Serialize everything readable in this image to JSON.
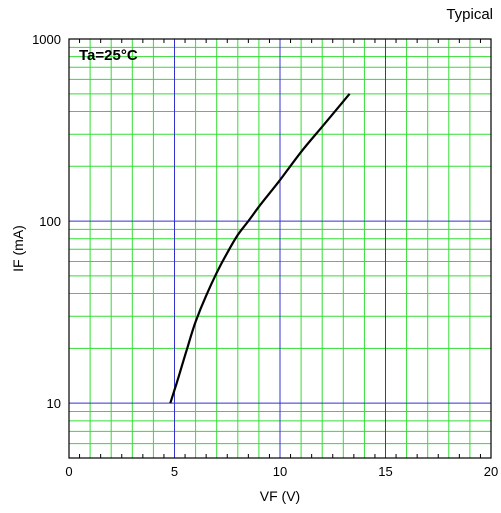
{
  "chart_data": {
    "type": "line",
    "note": "Typical",
    "condition": "Ta=25°C",
    "xlabel": "VF (V)",
    "ylabel": "IF (mA)",
    "xlim": [
      0,
      20
    ],
    "ylim": [
      5,
      1000
    ],
    "yscale": "log",
    "x_ticks": [
      0,
      5,
      10,
      15,
      20
    ],
    "x_tick_labels": [
      "0",
      "5",
      "10",
      "15",
      "20"
    ],
    "y_ticks": [
      10,
      100,
      1000
    ],
    "y_tick_labels": [
      "10",
      "100",
      "1000"
    ],
    "grid": true,
    "colors": {
      "major_grid": "#3333cc",
      "minor_grid": "#33dd33",
      "curve": "#000000"
    },
    "series": [
      {
        "x": [
          4.8,
          5.2,
          5.6,
          6.0,
          6.5,
          7.0,
          7.5,
          8.0,
          8.5,
          9.0,
          9.5,
          10.0,
          11.0,
          12.0,
          13.3
        ],
        "y": [
          10,
          14,
          20,
          28,
          39,
          52,
          67,
          84,
          100,
          120,
          142,
          168,
          240,
          330,
          500
        ]
      }
    ]
  }
}
